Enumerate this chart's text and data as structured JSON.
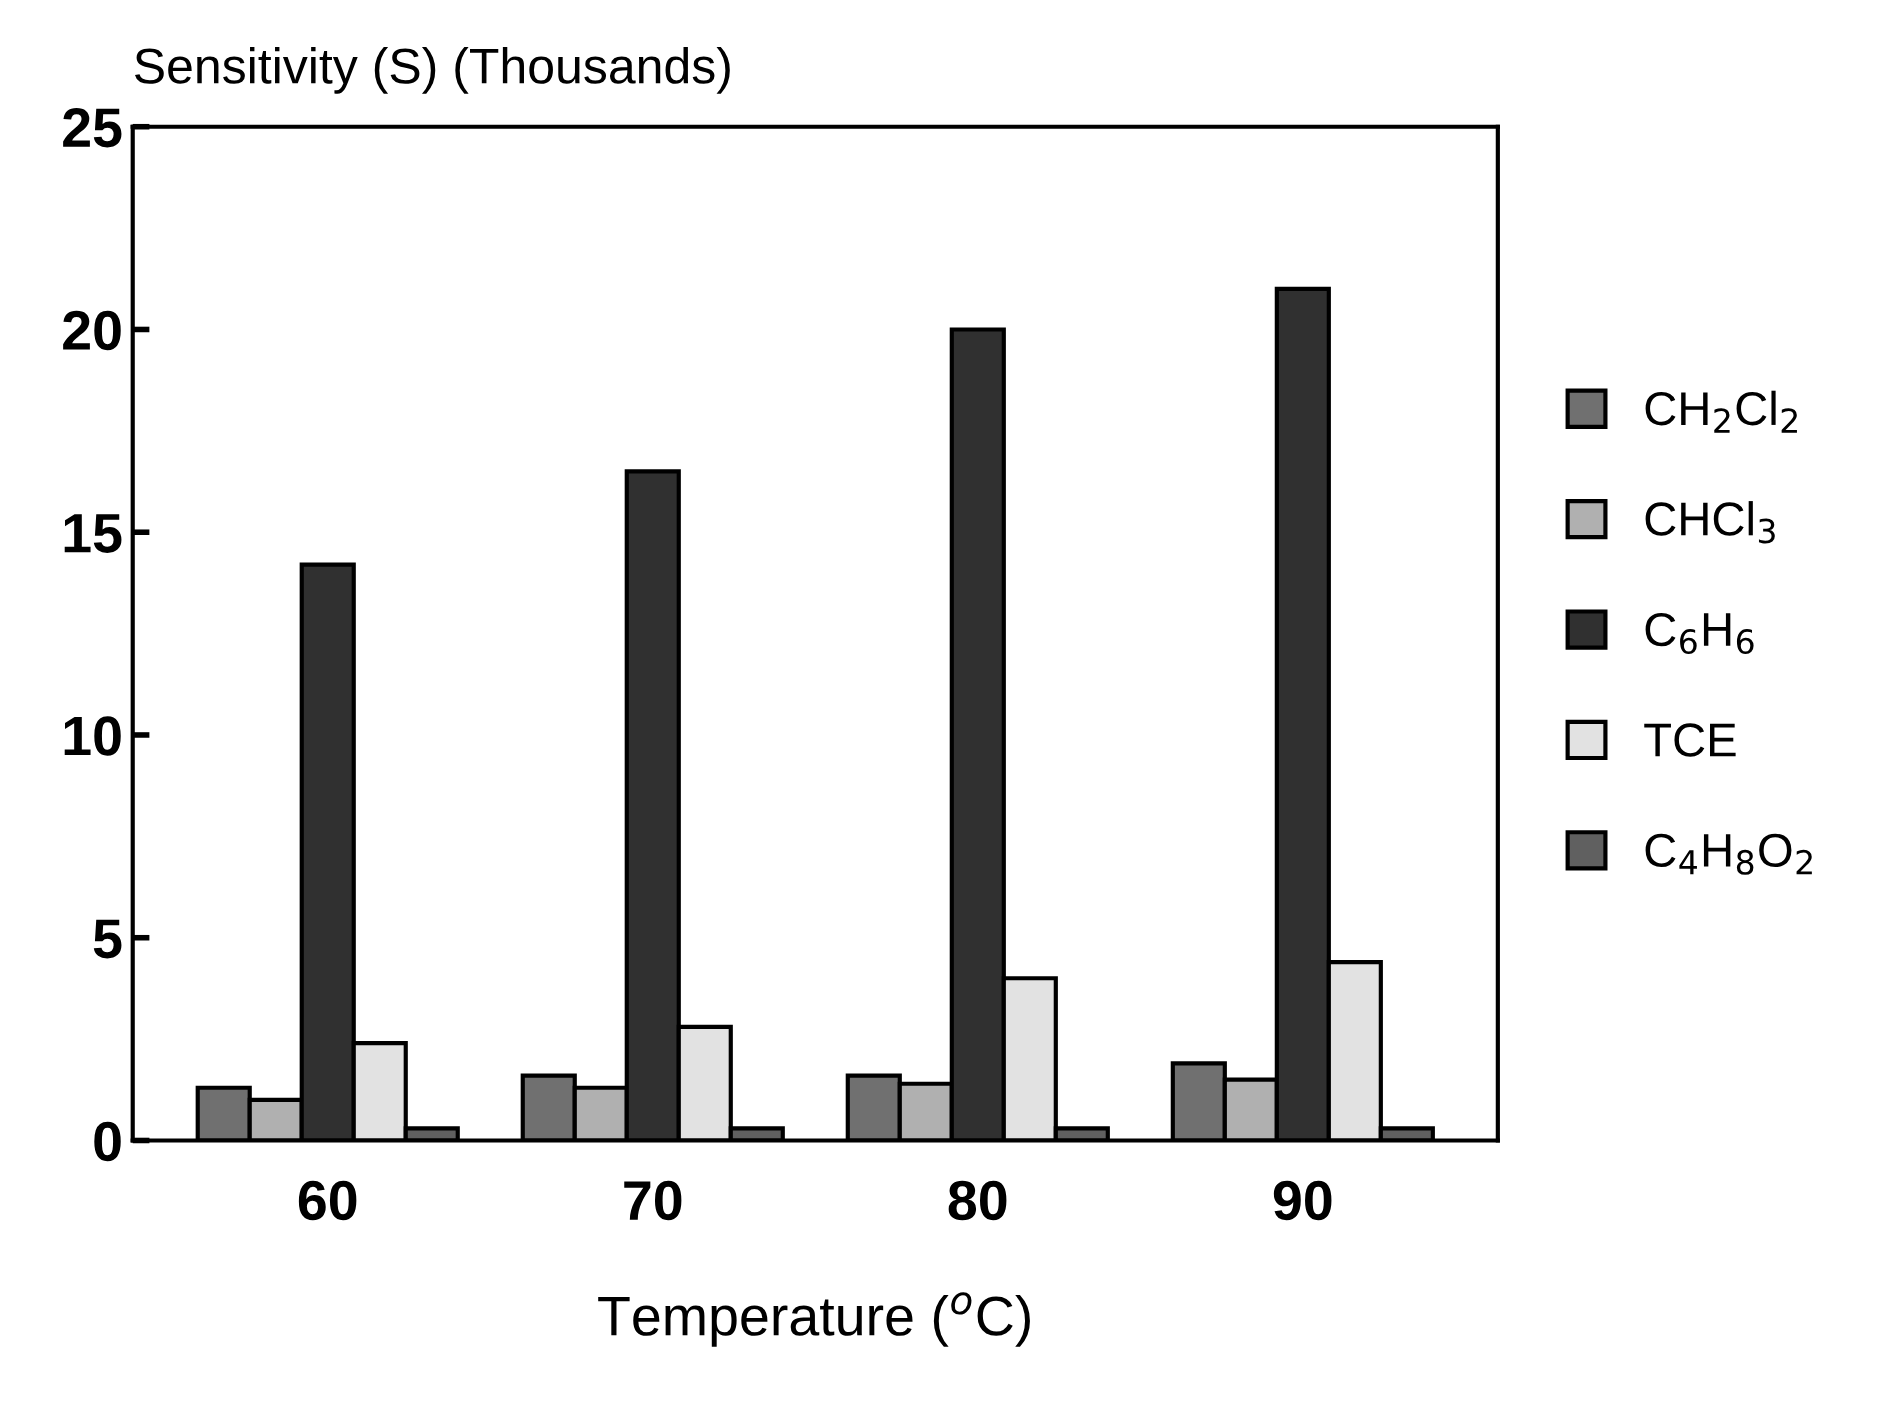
{
  "chart_data": {
    "type": "bar",
    "ylabel": "Sensitivity (S) (Thousands)",
    "xlabel": "Temperature ($^{o}$C)",
    "categories": [
      "60",
      "70",
      "80",
      "90"
    ],
    "series": [
      {
        "name": "CH$_{2}$Cl$_{2}$",
        "color": "#707070",
        "values": [
          1.3,
          1.6,
          1.6,
          1.9
        ]
      },
      {
        "name": "CHCl$_{3}$",
        "color": "#b0b0b0",
        "values": [
          1.0,
          1.3,
          1.4,
          1.5
        ]
      },
      {
        "name": "C$_{6}$H$_{6}$",
        "color": "#303030",
        "values": [
          14.2,
          16.5,
          20.0,
          21.0
        ]
      },
      {
        "name": "TCE",
        "color": "#e2e2e2",
        "values": [
          2.4,
          2.8,
          4.0,
          4.4
        ]
      },
      {
        "name": "C$_{4}$H$_{8}$O$_{2}$",
        "color": "#606060",
        "values": [
          0.3,
          0.3,
          0.3,
          0.3
        ]
      }
    ],
    "ylim": [
      0,
      25
    ],
    "yticks": [
      0,
      5,
      10,
      15,
      20,
      25
    ],
    "grid": false,
    "legend": "right"
  }
}
